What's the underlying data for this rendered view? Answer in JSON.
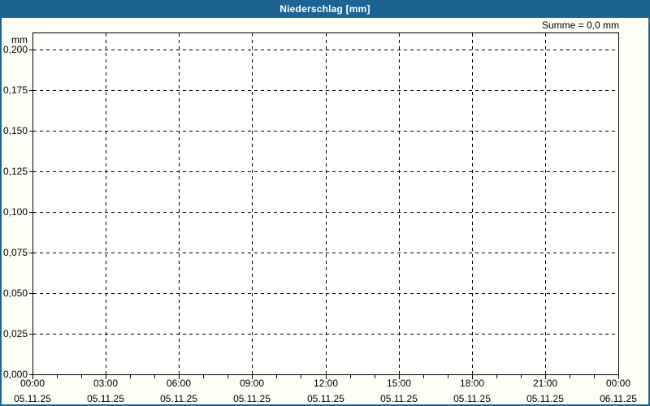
{
  "window": {
    "title": "Niederschlag [mm]"
  },
  "colors": {
    "titlebar_bg": "#1d6495",
    "titlebar_text": "#ffffff",
    "frame_border": "#1d6495",
    "background": "#fcfff5",
    "plot_background": "#fffffd",
    "grid": "#000000",
    "text": "#000000"
  },
  "chart_data": {
    "type": "bar",
    "title": "Niederschlag [mm]",
    "unit": "mm",
    "summary": "Summe = 0,0 mm",
    "total_mm": 0.0,
    "ylabel": "mm",
    "ylim": [
      0,
      0.21
    ],
    "grid": true,
    "grid_style": "dashed",
    "y_ticks": [
      {
        "value": 0.0,
        "label": "0,000"
      },
      {
        "value": 0.025,
        "label": "0,025"
      },
      {
        "value": 0.05,
        "label": "0,050"
      },
      {
        "value": 0.075,
        "label": "0,075"
      },
      {
        "value": 0.1,
        "label": "0,100"
      },
      {
        "value": 0.125,
        "label": "0,125"
      },
      {
        "value": 0.15,
        "label": "0,150"
      },
      {
        "value": 0.175,
        "label": "0,175"
      },
      {
        "value": 0.2,
        "label": "0,200"
      }
    ],
    "x_ticks": [
      {
        "hour": 0,
        "time": "00:00",
        "date": "05.11.25"
      },
      {
        "hour": 3,
        "time": "03:00",
        "date": "05.11.25"
      },
      {
        "hour": 6,
        "time": "06:00",
        "date": "05.11.25"
      },
      {
        "hour": 9,
        "time": "09:00",
        "date": "05.11.25"
      },
      {
        "hour": 12,
        "time": "12:00",
        "date": "05.11.25"
      },
      {
        "hour": 15,
        "time": "15:00",
        "date": "05.11.25"
      },
      {
        "hour": 18,
        "time": "18:00",
        "date": "05.11.25"
      },
      {
        "hour": 21,
        "time": "21:00",
        "date": "05.11.25"
      },
      {
        "hour": 24,
        "time": "00:00",
        "date": "06.11.25"
      }
    ],
    "x_minor_tick_interval_hours": 1,
    "x_range_hours": [
      0,
      24
    ],
    "series": [
      {
        "name": "Niederschlag",
        "values": [],
        "note": "no precipitation recorded - plot area empty, sum 0,0 mm"
      }
    ]
  }
}
